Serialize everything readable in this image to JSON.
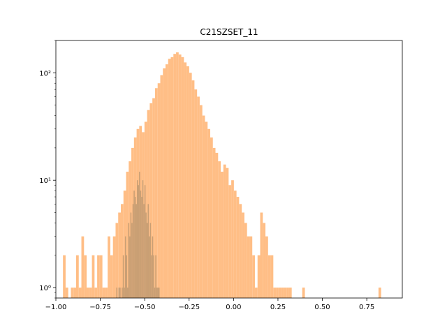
{
  "chart_data": {
    "type": "bar",
    "title": "C21SZSET_11",
    "xlabel": "",
    "ylabel": "",
    "xlim": [
      -1.0,
      0.95
    ],
    "ylim": [
      0.8,
      200
    ],
    "yscale": "log",
    "grid": false,
    "x_ticks": [
      -1.0,
      -0.75,
      -0.5,
      -0.25,
      0.0,
      0.25,
      0.5,
      0.75
    ],
    "x_tick_labels": [
      "−1.00",
      "−0.75",
      "−0.50",
      "−0.25",
      "0.00",
      "0.25",
      "0.50",
      "0.75"
    ],
    "y_ticks": [
      1,
      10,
      100
    ],
    "y_tick_labels": [
      "10⁰",
      "10¹",
      "10²"
    ],
    "series": [
      {
        "color": "#ffbe86",
        "bin_start": -0.96,
        "bin_width": 0.0148,
        "counts": [
          2,
          1,
          0,
          1,
          1,
          2,
          1,
          3,
          2,
          1,
          1,
          2,
          1,
          2,
          2,
          1,
          1,
          3,
          2,
          3,
          4,
          5,
          6,
          8,
          12,
          15,
          20,
          25,
          30,
          32,
          28,
          35,
          45,
          52,
          58,
          72,
          80,
          95,
          110,
          120,
          135,
          140,
          150,
          155,
          148,
          140,
          125,
          115,
          100,
          85,
          70,
          60,
          50,
          40,
          35,
          30,
          25,
          20,
          18,
          15,
          12,
          14,
          13,
          9,
          10,
          8,
          7,
          6,
          5,
          4,
          3,
          3,
          2,
          1,
          2,
          5,
          4,
          3,
          2,
          2,
          1,
          1,
          1,
          1,
          1,
          1,
          1,
          0,
          0,
          0,
          0,
          1,
          0,
          0,
          0,
          0,
          0,
          0,
          0,
          0,
          0,
          0,
          0,
          0,
          0,
          0,
          0,
          0,
          0,
          0,
          0,
          0,
          0,
          0,
          0,
          0,
          0,
          0,
          0,
          0,
          1
        ]
      },
      {
        "color": "#c99f74",
        "bin_start": -0.66,
        "bin_width": 0.0061,
        "counts": [
          1,
          0,
          1,
          1,
          0,
          1,
          2,
          1,
          3,
          2,
          1,
          4,
          3,
          5,
          4,
          6,
          8,
          7,
          6,
          10,
          9,
          12,
          8,
          7,
          10,
          6,
          9,
          5,
          4,
          6,
          3,
          4,
          2,
          3,
          2,
          1,
          2,
          1,
          1,
          1
        ]
      }
    ]
  }
}
